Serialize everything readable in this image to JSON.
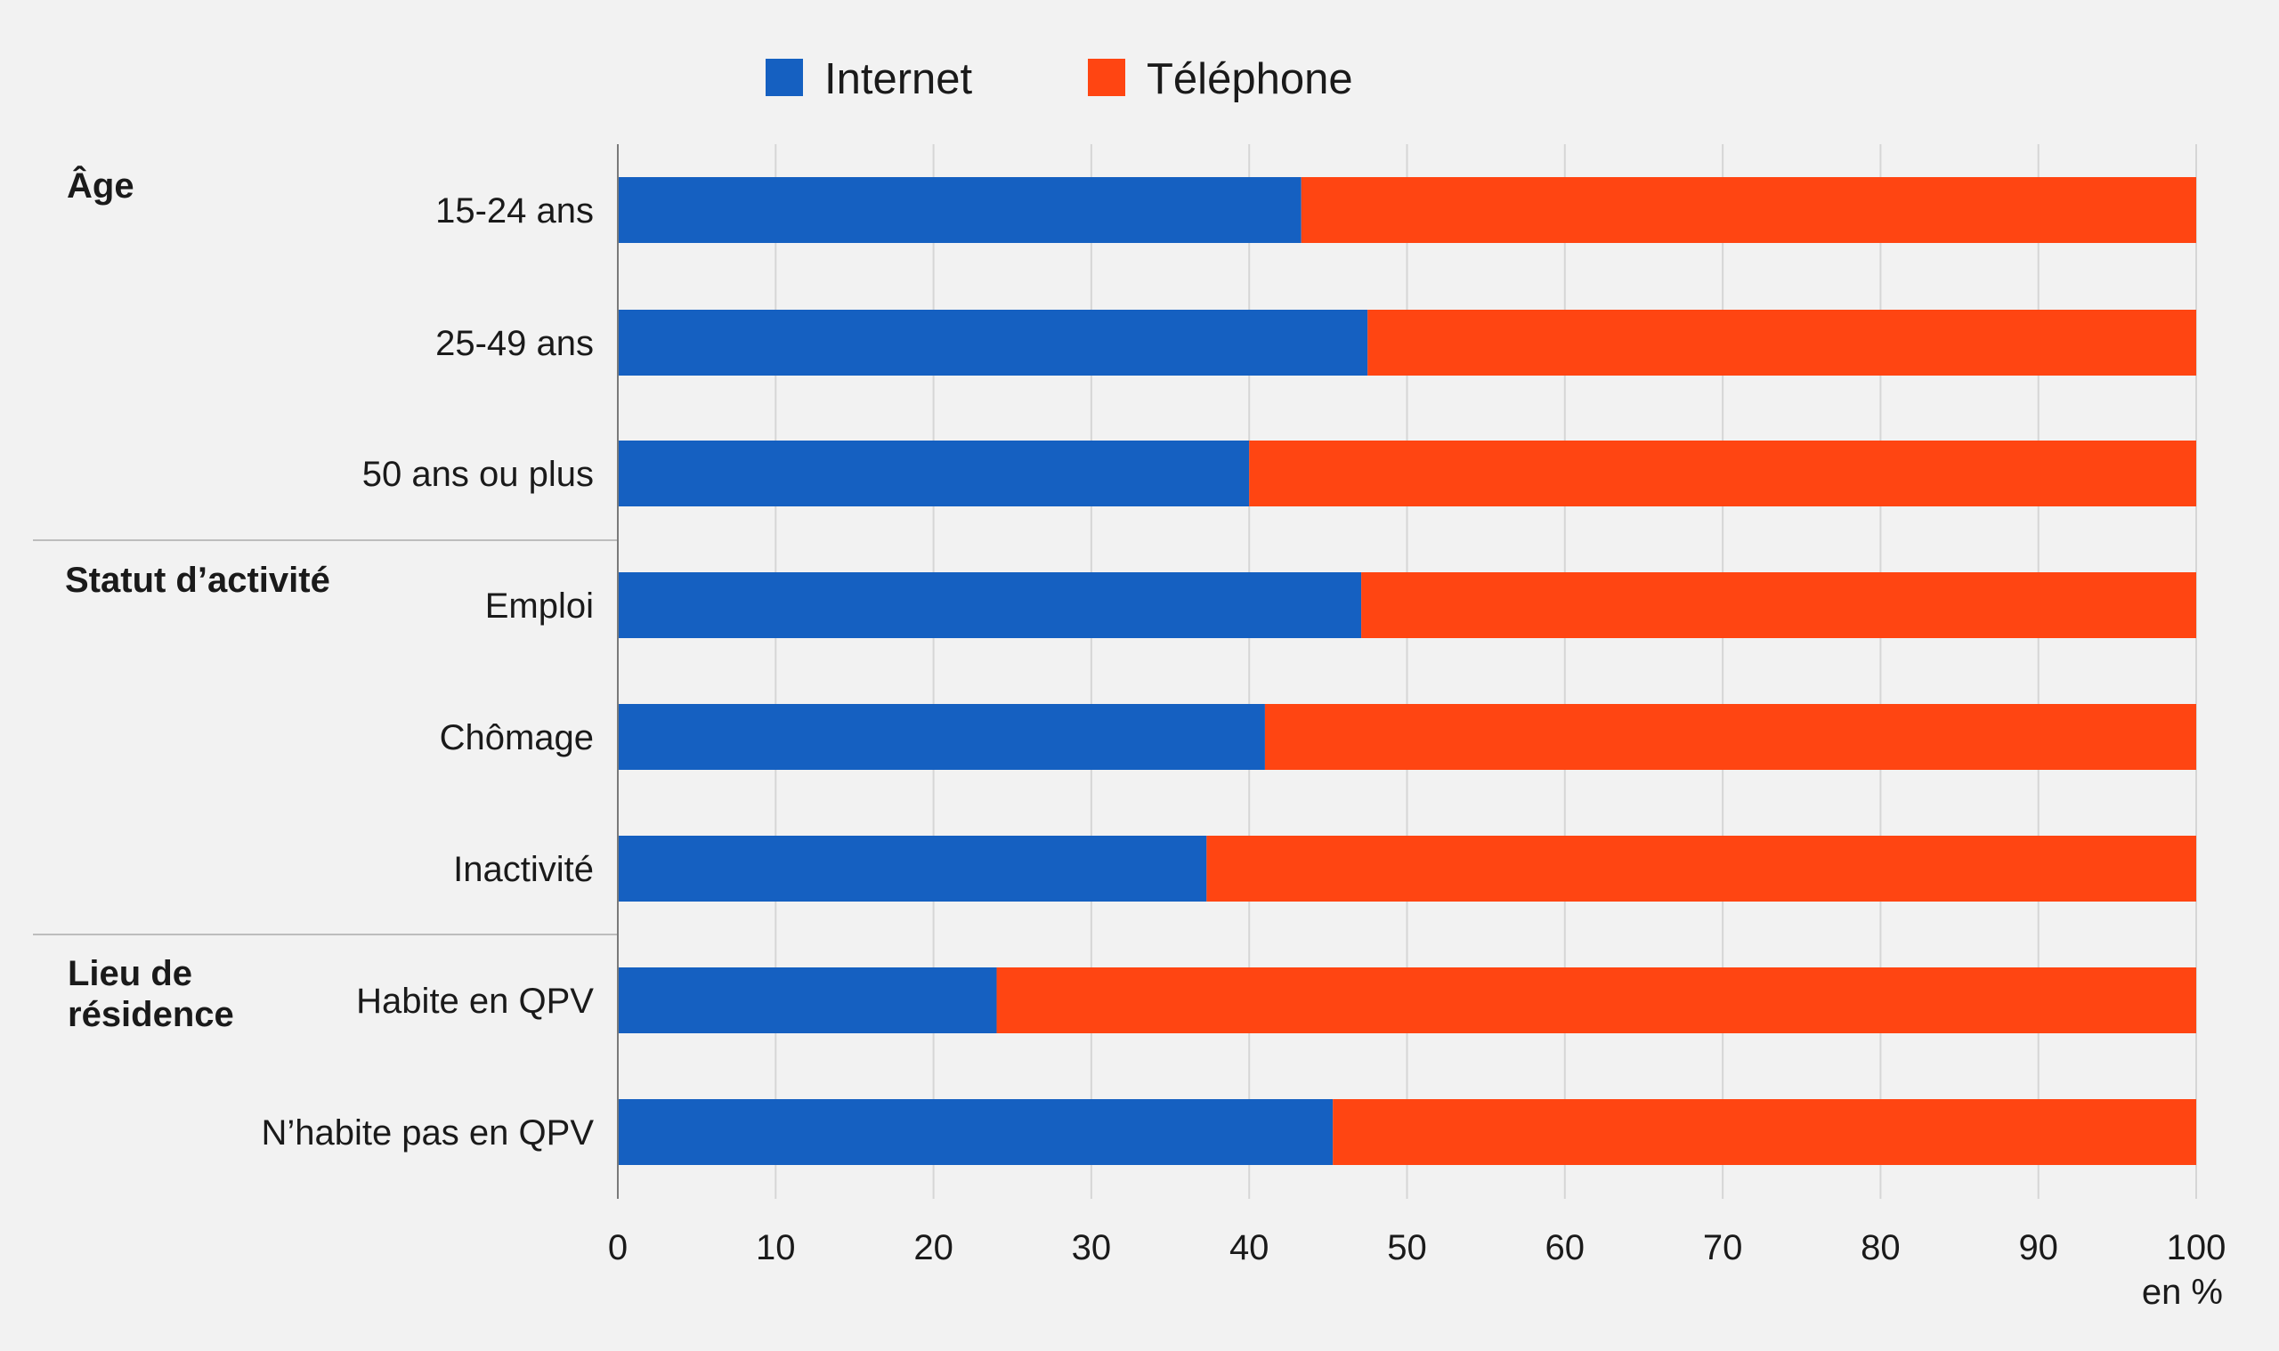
{
  "chart_data": {
    "type": "bar",
    "orientation": "horizontal",
    "stacked": true,
    "legend": {
      "position": "top",
      "items": [
        {
          "label": "Internet",
          "color": "#1560c1"
        },
        {
          "label": "Téléphone",
          "color": "#ff4512"
        }
      ]
    },
    "groups": [
      {
        "label": "Âge",
        "categories": [
          "15-24 ans",
          "25-49 ans",
          "50 ans ou plus"
        ]
      },
      {
        "label": "Statut d’activité",
        "categories": [
          "Emploi",
          "Chômage",
          "Inactivité"
        ]
      },
      {
        "label": "Lieu de résidence",
        "label_lines": [
          "Lieu de",
          "résidence"
        ],
        "categories": [
          "Habite en QPV",
          "N’habite pas en QPV"
        ]
      }
    ],
    "categories": [
      "15-24 ans",
      "25-49 ans",
      "50 ans ou plus",
      "Emploi",
      "Chômage",
      "Inactivité",
      "Habite en QPV",
      "N’habite pas en QPV"
    ],
    "series": [
      {
        "name": "Internet",
        "color": "#1560c1",
        "values": [
          43.3,
          47.5,
          40,
          47.1,
          41,
          37.3,
          24,
          45.3
        ]
      },
      {
        "name": "Téléphone",
        "color": "#ff4512",
        "values": [
          56.7,
          52.5,
          60,
          52.9,
          59,
          62.7,
          76,
          54.7
        ]
      }
    ],
    "xlim": [
      0,
      100
    ],
    "xticks": [
      0,
      10,
      20,
      30,
      40,
      50,
      60,
      70,
      80,
      90,
      100
    ],
    "xunit": "en %",
    "grid": true
  }
}
